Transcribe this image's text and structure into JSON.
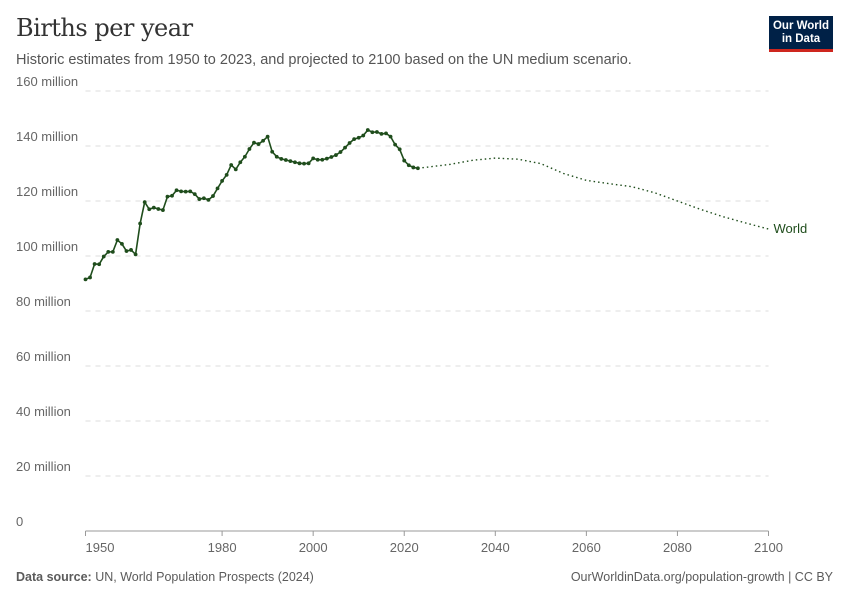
{
  "header": {
    "title": "Births per year",
    "subtitle": "Historic estimates from 1950 to 2023, and projected to 2100 based on the UN medium scenario.",
    "logo_line1": "Our World",
    "logo_line2": "in Data"
  },
  "footer": {
    "source_label": "Data source:",
    "source": "UN, World Population Prospects (2024)",
    "link": "OurWorldinData.org/population-growth | CC BY"
  },
  "chart_data": {
    "type": "line",
    "title": "Births per year",
    "xlim": [
      1950,
      2100
    ],
    "ylim": [
      0,
      160000000
    ],
    "grid": true,
    "x_ticks": [
      "1950",
      "1980",
      "2000",
      "2020",
      "2040",
      "2060",
      "2080",
      "2100"
    ],
    "x_tick_values": [
      1950,
      1980,
      2000,
      2020,
      2040,
      2060,
      2080,
      2100
    ],
    "y_ticks": [
      "0",
      "20 million",
      "40 million",
      "60 million",
      "80 million",
      "100 million",
      "120 million",
      "140 million",
      "160 million"
    ],
    "y_tick_values": [
      0,
      20,
      40,
      60,
      80,
      100,
      120,
      140,
      160
    ],
    "y_unit": "million",
    "color": "#1f4d1c",
    "series": [
      {
        "name": "World",
        "style": "solid-markers",
        "x": [
          1950,
          1951,
          1952,
          1953,
          1954,
          1955,
          1956,
          1957,
          1958,
          1959,
          1960,
          1961,
          1962,
          1963,
          1964,
          1965,
          1966,
          1967,
          1968,
          1969,
          1970,
          1971,
          1972,
          1973,
          1974,
          1975,
          1976,
          1977,
          1978,
          1979,
          1980,
          1981,
          1982,
          1983,
          1984,
          1985,
          1986,
          1987,
          1988,
          1989,
          1990,
          1991,
          1992,
          1993,
          1994,
          1995,
          1996,
          1997,
          1998,
          1999,
          2000,
          2001,
          2002,
          2003,
          2004,
          2005,
          2006,
          2007,
          2008,
          2009,
          2010,
          2011,
          2012,
          2013,
          2014,
          2015,
          2016,
          2017,
          2018,
          2019,
          2020,
          2021,
          2022,
          2023
        ],
        "y": [
          91.5,
          92.2,
          97.1,
          97.0,
          99.8,
          101.5,
          101.5,
          105.8,
          104.4,
          101.8,
          102.2,
          100.6,
          111.8,
          119.6,
          117.0,
          117.6,
          117.1,
          116.7,
          121.6,
          121.9,
          123.9,
          123.5,
          123.4,
          123.5,
          122.5,
          120.7,
          121.0,
          120.4,
          121.8,
          124.6,
          127.3,
          129.5,
          133.1,
          131.5,
          134.1,
          136.1,
          138.9,
          141.2,
          140.7,
          141.9,
          143.4,
          137.9,
          136.1,
          135.3,
          134.9,
          134.5,
          134.1,
          133.7,
          133.6,
          133.7,
          135.5,
          135.0,
          135.0,
          135.4,
          136.0,
          136.7,
          137.8,
          139.4,
          141.1,
          142.5,
          143.0,
          143.8,
          145.8,
          145.0,
          145.1,
          144.4,
          144.6,
          143.4,
          140.5,
          138.8,
          134.7,
          133.0,
          132.2,
          131.9
        ]
      },
      {
        "name": "World",
        "style": "dotted-projection",
        "x": [
          2023,
          2025,
          2030,
          2035,
          2040,
          2045,
          2050,
          2055,
          2060,
          2065,
          2070,
          2075,
          2080,
          2085,
          2090,
          2095,
          2100
        ],
        "y": [
          131.9,
          132.3,
          133.3,
          134.8,
          135.6,
          135.2,
          133.6,
          130.0,
          127.5,
          126.3,
          125.2,
          123.0,
          120.0,
          117.0,
          114.3,
          112.0,
          109.8
        ]
      }
    ],
    "legend_label": "World"
  }
}
